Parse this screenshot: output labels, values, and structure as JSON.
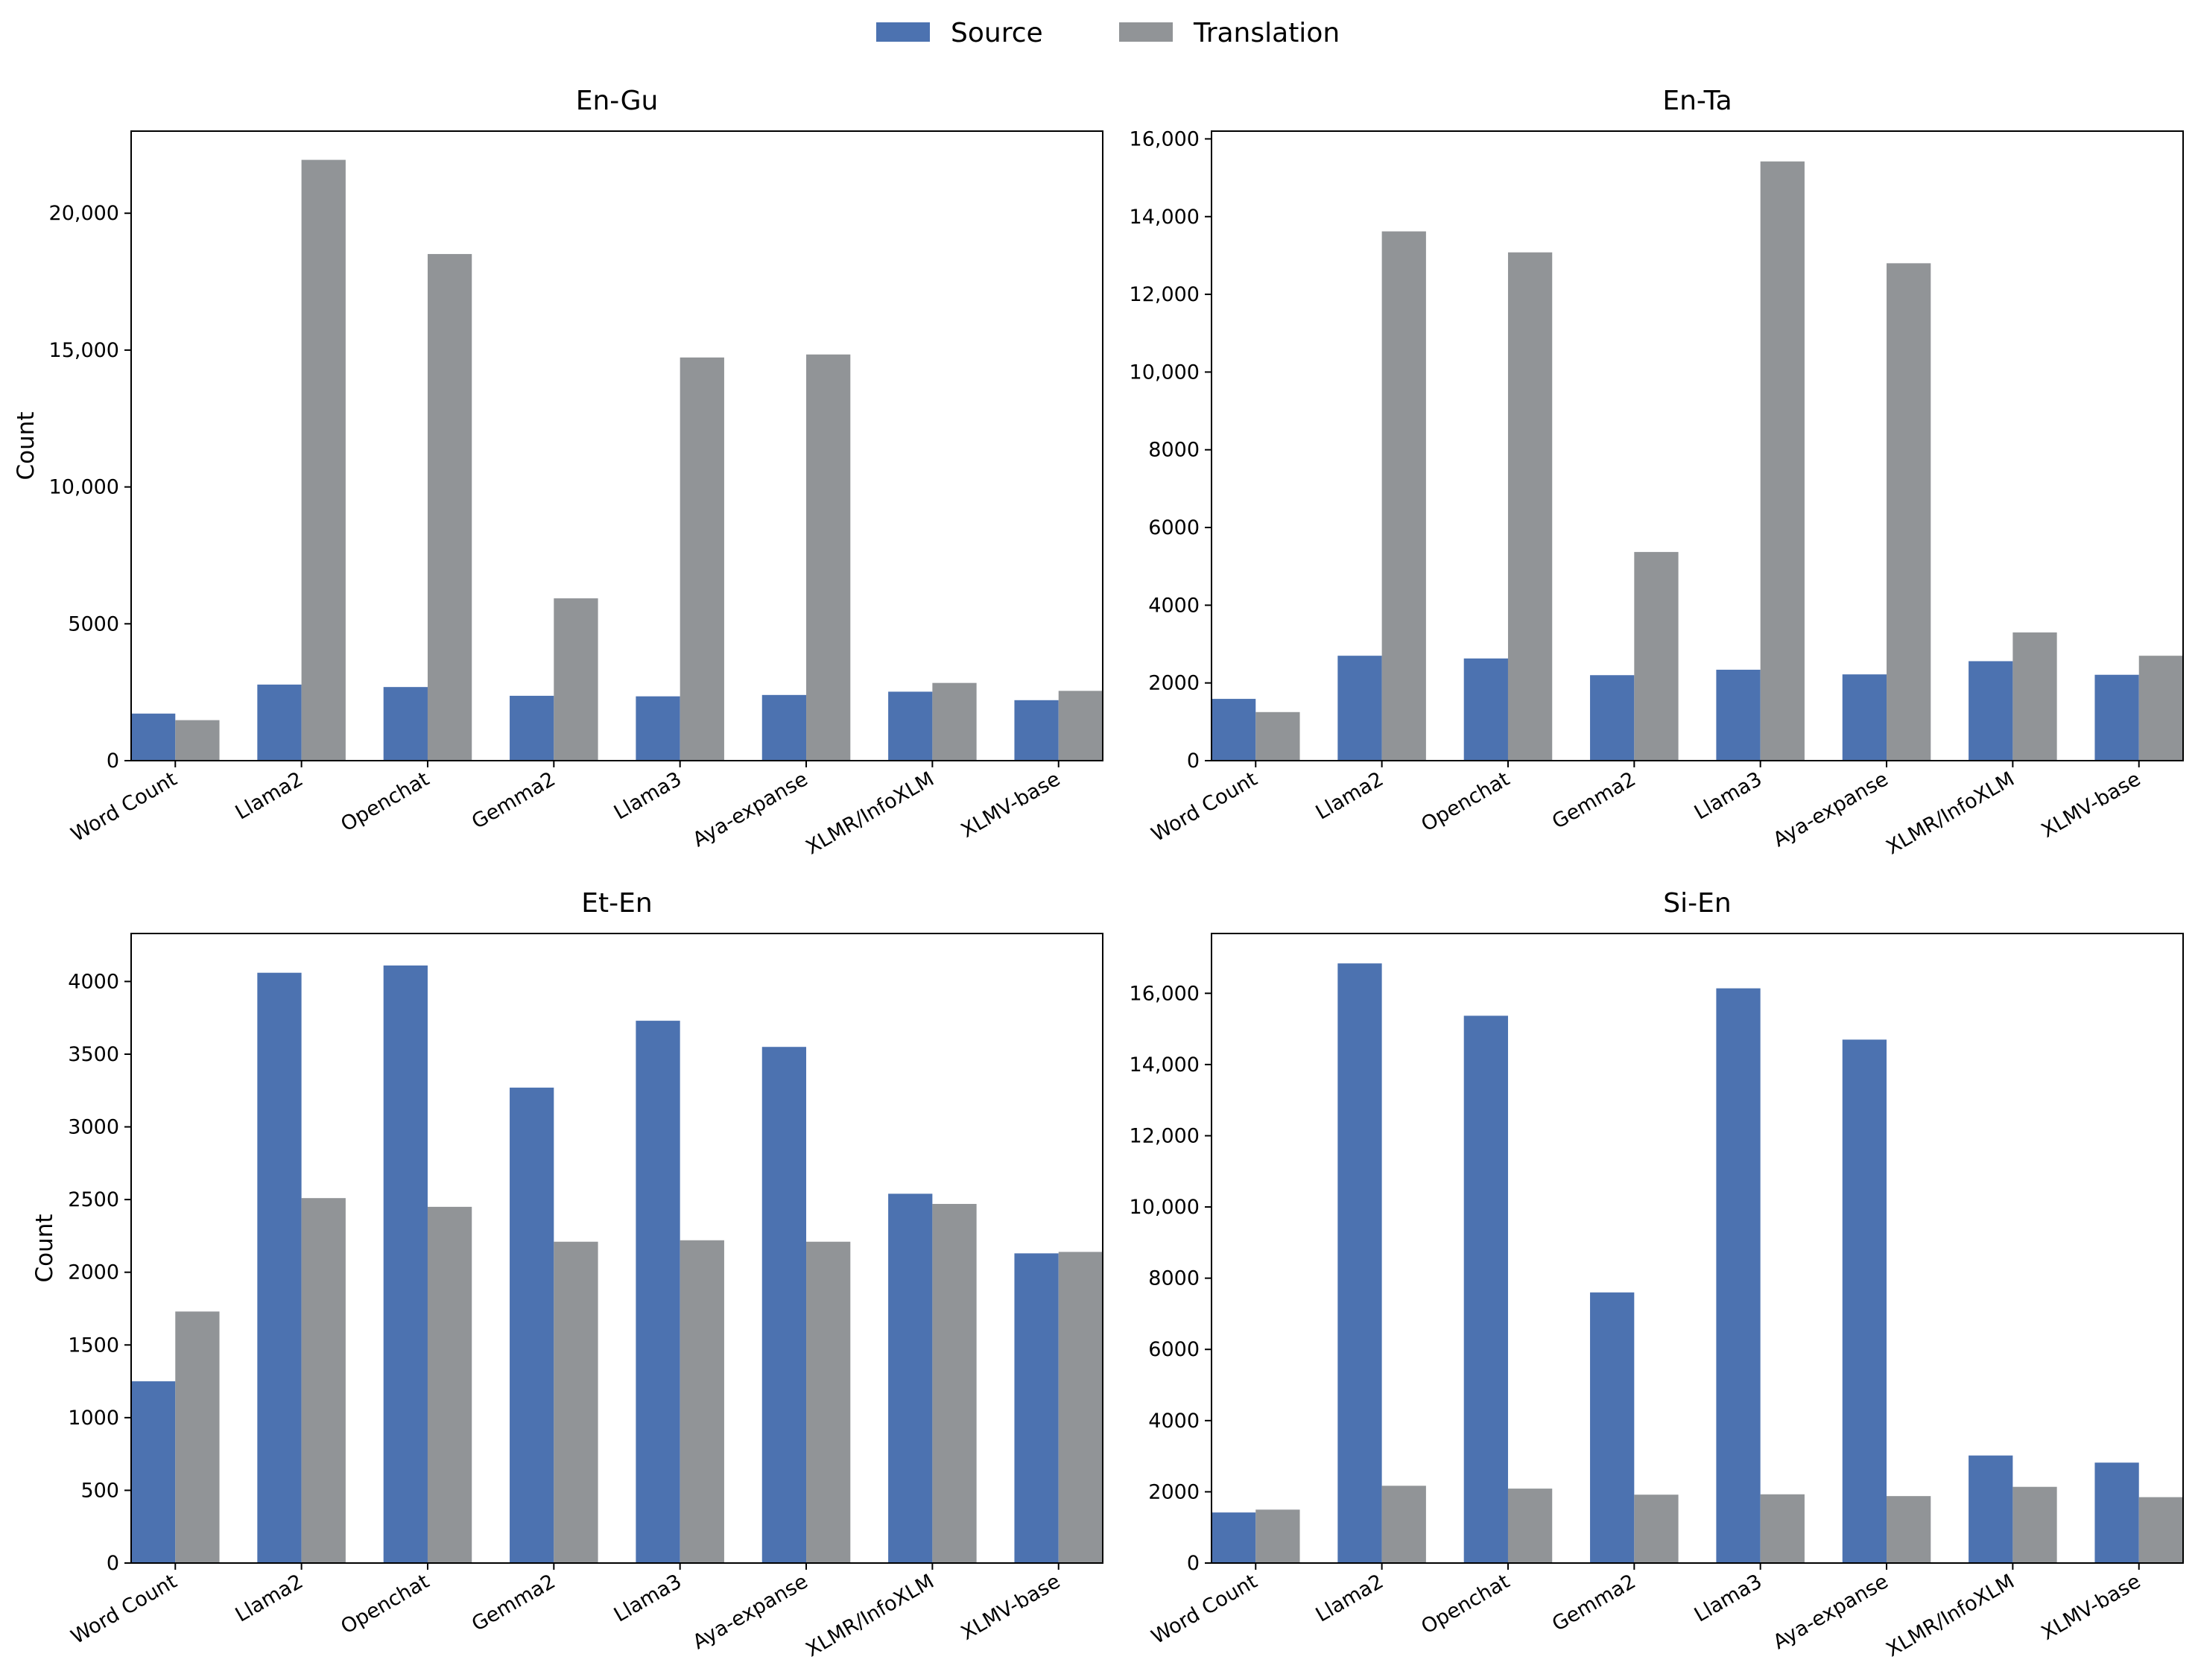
{
  "legend": {
    "source_label": "Source",
    "translation_label": "Translation"
  },
  "colors": {
    "source": "#4c72b0",
    "translation": "#919497"
  },
  "chart_data": [
    {
      "type": "bar",
      "title": "En-Gu",
      "xlabel": "",
      "ylabel": "Count",
      "categories": [
        "Word Count",
        "Llama2",
        "Openchat",
        "Gemma2",
        "Llama3",
        "Aya-expanse",
        "XLMR/InfoXLM",
        "XLMV-base"
      ],
      "series": [
        {
          "name": "Source",
          "values": [
            1720,
            2780,
            2690,
            2370,
            2350,
            2400,
            2520,
            2210
          ]
        },
        {
          "name": "Translation",
          "values": [
            1480,
            21950,
            18510,
            5930,
            14730,
            14840,
            2840,
            2550
          ]
        }
      ],
      "ylim": [
        0,
        23000
      ],
      "yticks": [
        0,
        5000,
        10000,
        15000,
        20000
      ],
      "ytick_labels": [
        "0",
        "5000",
        "10,000",
        "15,000",
        "20,000"
      ]
    },
    {
      "type": "bar",
      "title": "En-Ta",
      "xlabel": "",
      "ylabel": "",
      "categories": [
        "Word Count",
        "Llama2",
        "Openchat",
        "Gemma2",
        "Llama3",
        "Aya-expanse",
        "XLMR/InfoXLM",
        "XLMV-base"
      ],
      "series": [
        {
          "name": "Source",
          "values": [
            1590,
            2700,
            2630,
            2200,
            2340,
            2220,
            2560,
            2210
          ]
        },
        {
          "name": "Translation",
          "values": [
            1250,
            13620,
            13080,
            5370,
            15420,
            12800,
            3300,
            2700
          ]
        }
      ],
      "ylim": [
        0,
        16200
      ],
      "yticks": [
        0,
        2000,
        4000,
        6000,
        8000,
        10000,
        12000,
        14000,
        16000
      ],
      "ytick_labels": [
        "0",
        "2000",
        "4000",
        "6000",
        "8000",
        "10,000",
        "12,000",
        "14,000",
        "16,000"
      ]
    },
    {
      "type": "bar",
      "title": "Et-En",
      "xlabel": "",
      "ylabel": "Count",
      "categories": [
        "Word Count",
        "Llama2",
        "Openchat",
        "Gemma2",
        "Llama3",
        "Aya-expanse",
        "XLMR/InfoXLM",
        "XLMV-base"
      ],
      "series": [
        {
          "name": "Source",
          "values": [
            1250,
            4060,
            4110,
            3270,
            3730,
            3550,
            2540,
            2130
          ]
        },
        {
          "name": "Translation",
          "values": [
            1730,
            2510,
            2450,
            2210,
            2220,
            2210,
            2470,
            2140
          ]
        }
      ],
      "ylim": [
        0,
        4330
      ],
      "yticks": [
        0,
        500,
        1000,
        1500,
        2000,
        2500,
        3000,
        3500,
        4000
      ],
      "ytick_labels": [
        "0",
        "500",
        "1000",
        "1500",
        "2000",
        "2500",
        "3000",
        "3500",
        "4000"
      ]
    },
    {
      "type": "bar",
      "title": "Si-En",
      "xlabel": "",
      "ylabel": "",
      "categories": [
        "Word Count",
        "Llama2",
        "Openchat",
        "Gemma2",
        "Llama3",
        "Aya-expanse",
        "XLMR/InfoXLM",
        "XLMV-base"
      ],
      "series": [
        {
          "name": "Source",
          "values": [
            1420,
            16840,
            15370,
            7600,
            16140,
            14700,
            3020,
            2820
          ]
        },
        {
          "name": "Translation",
          "values": [
            1500,
            2170,
            2090,
            1920,
            1930,
            1880,
            2140,
            1850
          ]
        }
      ],
      "ylim": [
        0,
        17680
      ],
      "yticks": [
        0,
        2000,
        4000,
        6000,
        8000,
        10000,
        12000,
        14000,
        16000
      ],
      "ytick_labels": [
        "0",
        "2000",
        "4000",
        "6000",
        "8000",
        "10,000",
        "12,000",
        "14,000",
        "16,000"
      ]
    }
  ]
}
